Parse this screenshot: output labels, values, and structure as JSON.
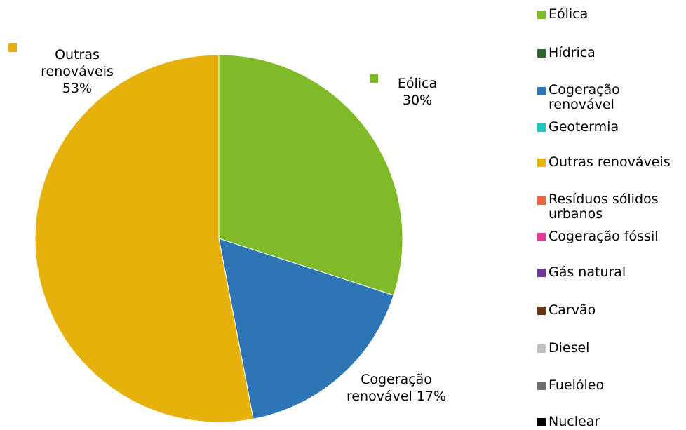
{
  "chart_data": {
    "type": "pie",
    "title": "",
    "slices": [
      {
        "name": "Eólica",
        "value": 30,
        "label": "Eólica 30%",
        "color": "#7fba28"
      },
      {
        "name": "Cogeração renovável",
        "value": 17,
        "label": "Cogeração renovável 17%",
        "color": "#2e75b6"
      },
      {
        "name": "Outras renováveis",
        "value": 53,
        "label": "Outras renováveis 53%",
        "color": "#e5b10a"
      }
    ],
    "legend": {
      "position": "right",
      "items": [
        {
          "label": "Eólica",
          "color": "#7fba28"
        },
        {
          "label": "Hídrica",
          "color": "#2e6630"
        },
        {
          "label": "Cogeração renovável",
          "color": "#2e75b6"
        },
        {
          "label": "Geotermia",
          "color": "#1dc9c0"
        },
        {
          "label": "Outras renováveis",
          "color": "#e5b10a"
        },
        {
          "label": "Resíduos sólidos urbanos",
          "color": "#f0663a"
        },
        {
          "label": "Cogeração fóssil",
          "color": "#e4399a"
        },
        {
          "label": "Gás natural",
          "color": "#6c3796"
        },
        {
          "label": "Carvão",
          "color": "#6b3410"
        },
        {
          "label": "Diesel",
          "color": "#c0c0c0"
        },
        {
          "label": "Fuelóleo",
          "color": "#6d6d6d"
        },
        {
          "label": "Nuclear",
          "color": "#000000"
        }
      ]
    }
  },
  "labels": {
    "eolica": {
      "line1": "Eólica",
      "line2": "30%"
    },
    "cogeracao": {
      "line1": "Cogeração",
      "line2": "renovável 17%"
    },
    "outras": {
      "line1": "Outras",
      "line2": "renováveis",
      "line3": "53%"
    }
  }
}
